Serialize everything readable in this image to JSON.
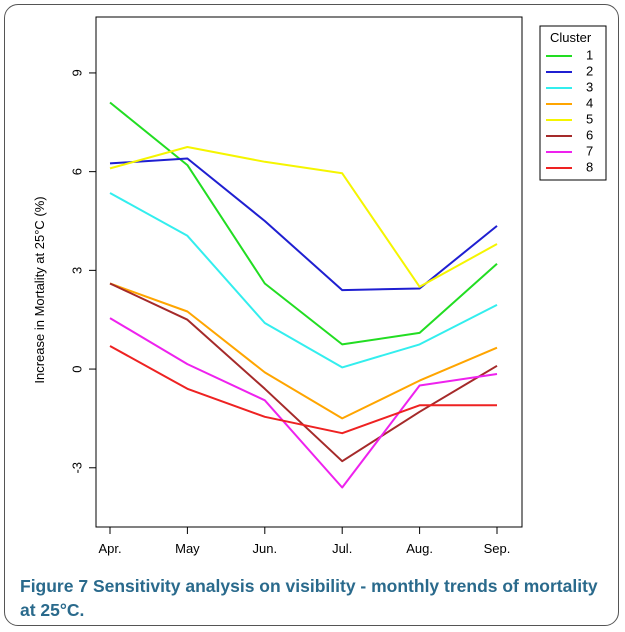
{
  "caption": {
    "label": "Figure 7",
    "text": "Sensitivity analysis on visibility - monthly trends of mortality at 25°C."
  },
  "chart_data": {
    "type": "line",
    "title": "",
    "xlabel": "",
    "ylabel": "Increase in Mortality at 25°C (%)",
    "categories": [
      "Apr.",
      "May",
      "Jun.",
      "Jul.",
      "Aug.",
      "Sep."
    ],
    "ylim": [
      -4.8,
      10.7
    ],
    "yticks": [
      -3,
      0,
      3,
      6,
      9
    ],
    "ytick_labels": [
      "-3",
      "0",
      "3",
      "6",
      "9"
    ],
    "grid": false,
    "legend": {
      "title": "Cluster",
      "position": "top-right"
    },
    "series": [
      {
        "name": "1",
        "color": "#22dd22",
        "values": [
          8.1,
          6.2,
          2.6,
          0.75,
          1.1,
          3.2
        ]
      },
      {
        "name": "2",
        "color": "#1f1fd1",
        "values": [
          6.25,
          6.4,
          4.5,
          2.4,
          2.45,
          4.35
        ]
      },
      {
        "name": "3",
        "color": "#33eeee",
        "values": [
          5.35,
          4.05,
          1.4,
          0.05,
          0.75,
          1.95
        ]
      },
      {
        "name": "4",
        "color": "#ffa500",
        "values": [
          2.6,
          1.75,
          -0.1,
          -1.5,
          -0.35,
          0.65
        ]
      },
      {
        "name": "5",
        "color": "#f5f500",
        "values": [
          6.1,
          6.75,
          6.3,
          5.95,
          2.5,
          3.8
        ]
      },
      {
        "name": "6",
        "color": "#a52a2a",
        "values": [
          2.6,
          1.5,
          -0.6,
          -2.8,
          -1.3,
          0.1
        ]
      },
      {
        "name": "7",
        "color": "#ee22ee",
        "values": [
          1.55,
          0.15,
          -0.95,
          -3.6,
          -0.5,
          -0.15
        ]
      },
      {
        "name": "8",
        "color": "#ee2222",
        "values": [
          0.7,
          -0.6,
          -1.45,
          -1.95,
          -1.1,
          -1.1
        ]
      }
    ]
  }
}
